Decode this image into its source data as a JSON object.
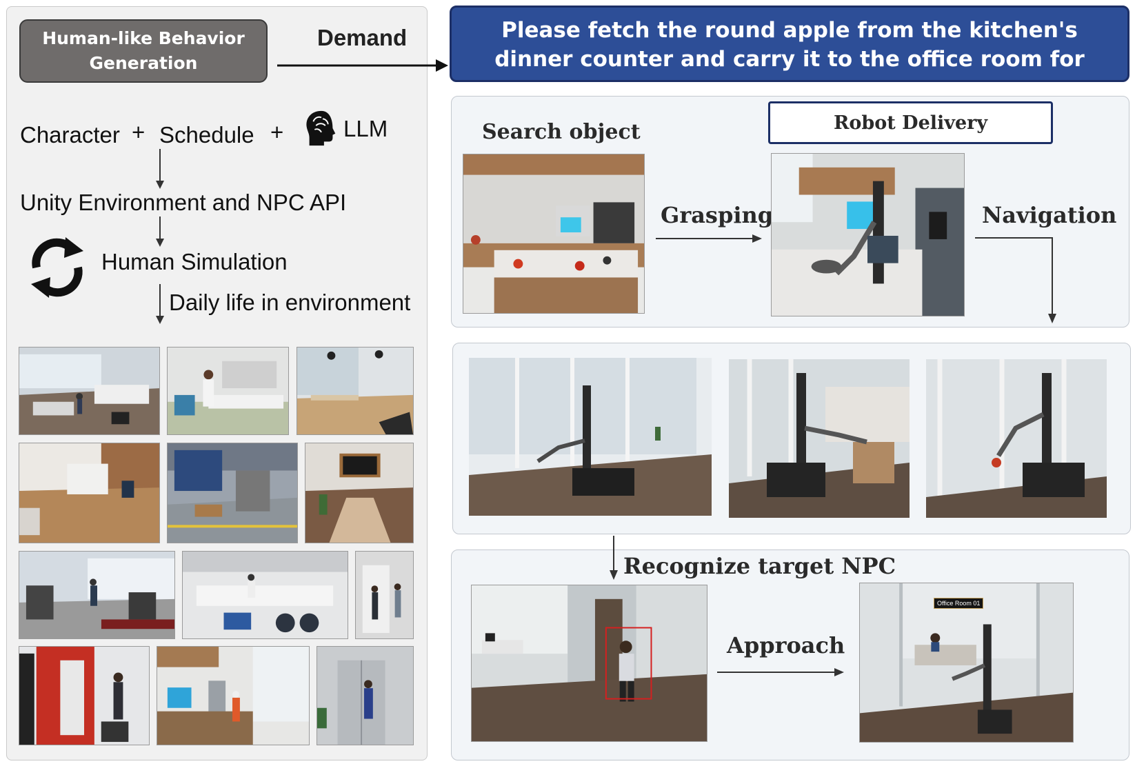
{
  "left": {
    "behavior_box": "Human-like Behavior Generation",
    "demand_label": "Demand",
    "character": "Character",
    "plus1": "+",
    "schedule": "Schedule",
    "plus2": "+",
    "llm": "LLM",
    "unity": "Unity Environment and NPC API",
    "human_sim": "Human Simulation",
    "daily_life": "Daily life in environment"
  },
  "demand_text": "Please fetch the round apple from the kitchen's dinner counter and carry it to the office room for me.",
  "pipeline": {
    "search_object": "Search object",
    "robot_delivery": "Robot Delivery",
    "grasping": "Grasping",
    "navigation": "Navigation",
    "recognize": "Recognize target NPC",
    "approach": "Approach",
    "office_sign": "Office Room 01"
  },
  "colors": {
    "demand_bg": "#2d4e97",
    "box_gray": "#6f6c6b",
    "bbox_red": "#d42020"
  }
}
